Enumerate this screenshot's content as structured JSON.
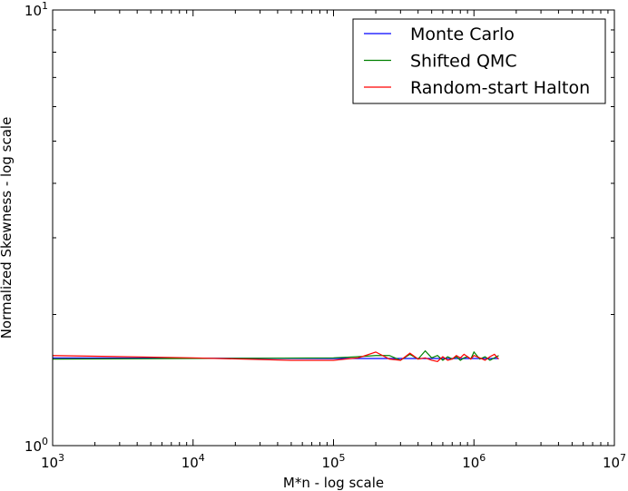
{
  "chart_data": {
    "type": "line",
    "title": "",
    "xlabel": "M*n - log scale",
    "ylabel": "Normalized Skewness - log scale",
    "xscale": "log",
    "yscale": "log",
    "xlim": [
      1000,
      10000000
    ],
    "ylim": [
      1,
      10
    ],
    "grid": false,
    "legend_position": "top-right",
    "x_tick_labels": [
      {
        "base": "10",
        "exp": "3",
        "value": 1000
      },
      {
        "base": "10",
        "exp": "4",
        "value": 10000
      },
      {
        "base": "10",
        "exp": "5",
        "value": 100000
      },
      {
        "base": "10",
        "exp": "6",
        "value": 1000000
      },
      {
        "base": "10",
        "exp": "7",
        "value": 10000000
      }
    ],
    "y_tick_labels": [
      {
        "base": "10",
        "exp": "0",
        "value": 1
      },
      {
        "base": "10",
        "exp": "1",
        "value": 10
      }
    ],
    "series": [
      {
        "name": "Monte Carlo",
        "color": "#0000ff",
        "x": [
          1000,
          100000,
          200000,
          300000,
          400000,
          500000,
          600000,
          700000,
          800000,
          900000,
          1000000,
          1100000,
          1200000,
          1300000,
          1400000,
          1500000
        ],
        "y": [
          1.59,
          1.585,
          1.585,
          1.585,
          1.585,
          1.585,
          1.585,
          1.585,
          1.585,
          1.585,
          1.585,
          1.585,
          1.585,
          1.585,
          1.585,
          1.585
        ]
      },
      {
        "name": "Shifted QMC",
        "color": "#008000",
        "x": [
          1000,
          100000,
          150000,
          200000,
          250000,
          300000,
          350000,
          400000,
          450000,
          500000,
          550000,
          600000,
          650000,
          700000,
          750000,
          800000,
          850000,
          900000,
          950000,
          1000000,
          1100000,
          1200000,
          1300000,
          1400000,
          1500000
        ],
        "y": [
          1.58,
          1.59,
          1.6,
          1.61,
          1.61,
          1.57,
          1.62,
          1.58,
          1.65,
          1.59,
          1.61,
          1.57,
          1.6,
          1.58,
          1.6,
          1.57,
          1.59,
          1.6,
          1.58,
          1.64,
          1.58,
          1.6,
          1.57,
          1.59,
          1.61
        ]
      },
      {
        "name": "Random-start Halton",
        "color": "#ff0000",
        "x": [
          1000,
          10000,
          50000,
          100000,
          150000,
          200000,
          250000,
          300000,
          350000,
          400000,
          450000,
          500000,
          550000,
          600000,
          650000,
          700000,
          750000,
          800000,
          850000,
          900000,
          950000,
          1000000,
          1100000,
          1200000,
          1300000,
          1400000,
          1500000
        ],
        "y": [
          1.61,
          1.59,
          1.57,
          1.57,
          1.59,
          1.64,
          1.58,
          1.57,
          1.63,
          1.58,
          1.59,
          1.57,
          1.56,
          1.6,
          1.57,
          1.58,
          1.61,
          1.59,
          1.62,
          1.6,
          1.58,
          1.61,
          1.59,
          1.57,
          1.6,
          1.62,
          1.58
        ]
      }
    ]
  }
}
